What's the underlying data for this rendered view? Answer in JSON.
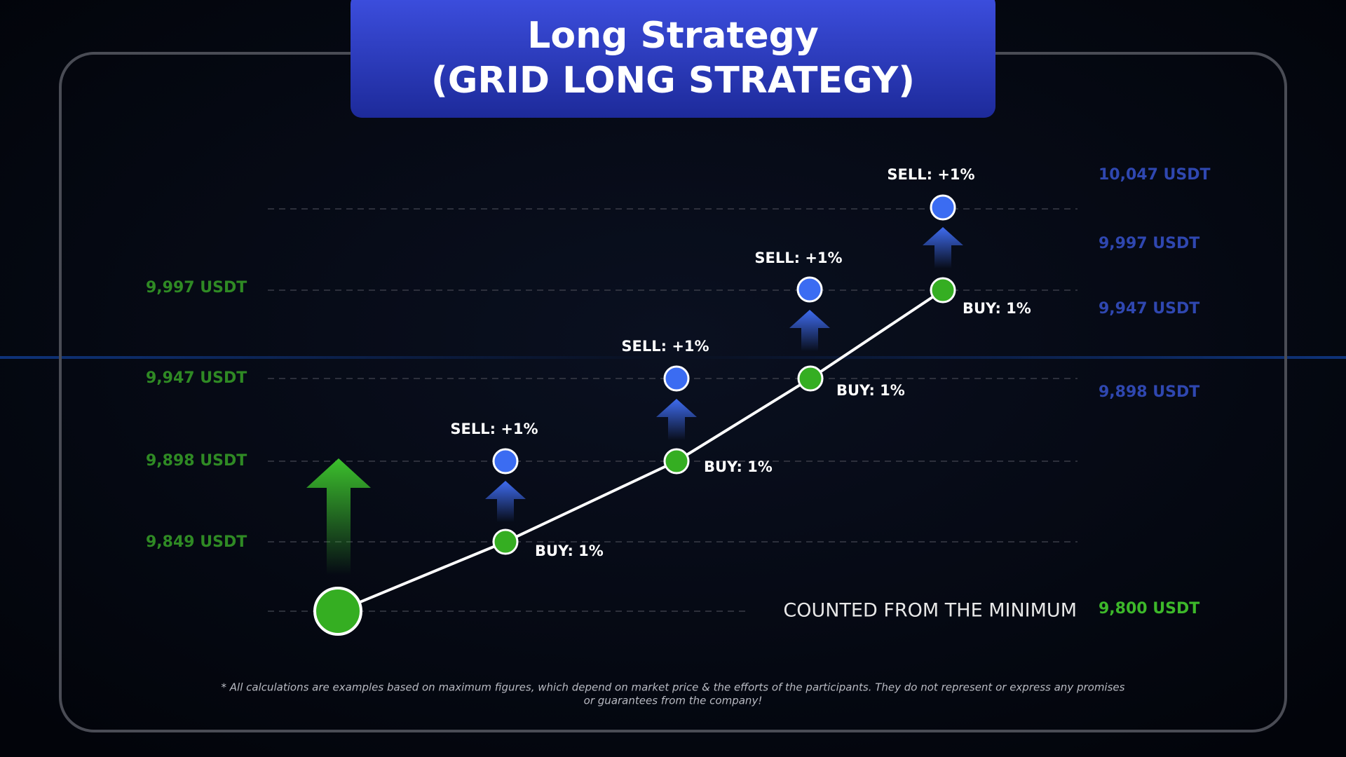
{
  "title": {
    "line1": "Long Strategy",
    "line2": "(GRID LONG STRATEGY)"
  },
  "left_labels": [
    "9,997 USDT",
    "9,947 USDT",
    "9,898 USDT",
    "9,849 USDT"
  ],
  "right_labels": [
    "10,047 USDT",
    "9,997 USDT",
    "9,947 USDT",
    "9,898 USDT",
    "9,800 USDT"
  ],
  "steps": [
    {
      "sell": "SELL: +1%",
      "buy": "BUY: 1%"
    },
    {
      "sell": "SELL: +1%",
      "buy": "BUY: 1%"
    },
    {
      "sell": "SELL: +1%",
      "buy": "BUY: 1%"
    },
    {
      "sell": "SELL: +1%",
      "buy": "BUY: 1%"
    }
  ],
  "note": "COUNTED FROM THE MINIMUM",
  "footnote": [
    "* All calculations are examples based on maximum figures, which depend on market price & the efforts of the participants. They do not represent or express any promises",
    "or guarantees from the company!"
  ]
}
